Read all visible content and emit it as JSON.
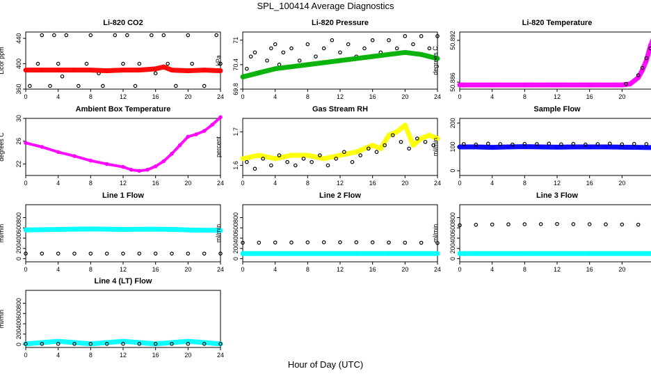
{
  "page": {
    "title": "SPL_100414  Average Diagnostics",
    "xaxis_label": "Hour of Day (UTC)"
  },
  "chart_data": [
    {
      "type": "scatter",
      "title": "Li-820 CO2",
      "ylabel": "Licor ppm",
      "xlim": [
        0,
        24
      ],
      "ylim": [
        360,
        450
      ],
      "xticks": [
        0,
        4,
        8,
        12,
        16,
        20,
        24
      ],
      "yticks": [
        360,
        400,
        440
      ],
      "series": [
        {
          "color": "#000000",
          "x": [
            0.5,
            1.5,
            2.0,
            3.0,
            3.5,
            4.0,
            4.5,
            5.0,
            6.5,
            7.5,
            8.0,
            9.0,
            9.5,
            11.0,
            12.0,
            12.5,
            13.5,
            14.0,
            15.5,
            16.0,
            17.0,
            17.5,
            18.5,
            20.0,
            20.5,
            22.0,
            23.5,
            24.0
          ],
          "y": [
            365,
            400,
            445,
            365,
            445,
            400,
            380,
            445,
            365,
            400,
            445,
            385,
            365,
            445,
            400,
            445,
            365,
            400,
            445,
            385,
            445,
            400,
            365,
            445,
            400,
            365,
            445,
            400
          ]
        },
        {
          "color": "#ff0000",
          "x": [
            0,
            2,
            4,
            6,
            8,
            10,
            12,
            14,
            16,
            17,
            18,
            20,
            22,
            24
          ],
          "y": [
            390,
            390,
            390,
            390,
            390,
            389,
            390,
            390,
            392,
            395,
            390,
            389,
            390,
            389
          ]
        }
      ]
    },
    {
      "type": "scatter",
      "title": "Li-820 Pressure",
      "ylabel": "kPa",
      "xlim": [
        0,
        24
      ],
      "ylim": [
        69.8,
        71.2
      ],
      "xticks": [
        0,
        4,
        8,
        12,
        16,
        20,
        24
      ],
      "yticks": [
        69.8,
        70.4,
        71.0
      ],
      "series": [
        {
          "color": "#000000",
          "x": [
            0.5,
            1.0,
            1.5,
            2.0,
            3.0,
            3.5,
            4.0,
            4.5,
            5.0,
            6.0,
            7.0,
            8.0,
            9.0,
            10.0,
            11.0,
            12.0,
            13.0,
            14.0,
            15.0,
            16.0,
            17.0,
            18.0,
            19.0,
            20.0,
            21.0,
            22.0,
            23.0,
            24.0
          ],
          "y": [
            70.3,
            70.6,
            70.7,
            70.2,
            70.5,
            70.8,
            70.9,
            70.4,
            70.7,
            70.8,
            70.5,
            70.9,
            70.6,
            70.8,
            71.0,
            70.7,
            70.9,
            70.6,
            70.8,
            71.0,
            70.7,
            71.0,
            70.8,
            71.1,
            70.9,
            71.1,
            70.8,
            71.1
          ]
        },
        {
          "color": "#00b000",
          "x": [
            0,
            2,
            4,
            6,
            8,
            10,
            12,
            14,
            16,
            18,
            20,
            22,
            24
          ],
          "y": [
            70.1,
            70.2,
            70.3,
            70.35,
            70.4,
            70.45,
            70.5,
            70.55,
            70.6,
            70.65,
            70.7,
            70.65,
            70.55
          ]
        }
      ]
    },
    {
      "type": "scatter",
      "title": "Li-820 Temperature",
      "ylabel": "degrees C",
      "xlim": [
        0,
        24
      ],
      "ylim": [
        50.884,
        50.096
      ],
      "xticks": [
        0,
        4,
        8,
        12,
        16,
        20,
        24
      ],
      "yticks": [
        "50.886",
        "50.892"
      ],
      "series": [
        {
          "color": "#ff00ff",
          "x": [
            0,
            4,
            8,
            12,
            16,
            20,
            21,
            22,
            22.5,
            23,
            23.5,
            24
          ],
          "y": [
            0.0,
            0.0,
            0.0,
            0.0,
            0.0,
            0.0,
            0.02,
            0.15,
            0.3,
            0.5,
            0.8,
            1.0
          ]
        },
        {
          "color": "#000000",
          "x": [
            20.5,
            22.0,
            22.5,
            23.0,
            23.5,
            24.0
          ],
          "y": [
            0.02,
            0.2,
            0.35,
            0.55,
            0.75,
            0.95
          ]
        }
      ]
    },
    {
      "type": "line",
      "title": "Ambient Box Temperature",
      "ylabel": "degrees C",
      "xlim": [
        0,
        24
      ],
      "ylim": [
        20,
        30
      ],
      "xticks": [
        0,
        4,
        8,
        12,
        16,
        20,
        24
      ],
      "yticks": [
        22,
        26,
        30
      ],
      "series": [
        {
          "color": "#ff00ff",
          "x": [
            0,
            2,
            4,
            6,
            8,
            10,
            12,
            13,
            14,
            15,
            16,
            17,
            18,
            19,
            20,
            21,
            22,
            23,
            24
          ],
          "y": [
            25.7,
            25.0,
            24.1,
            23.4,
            22.6,
            22.0,
            21.5,
            21.0,
            20.8,
            21.0,
            21.6,
            22.5,
            23.8,
            25.3,
            26.8,
            27.2,
            27.8,
            28.9,
            30.2
          ]
        }
      ]
    },
    {
      "type": "scatter",
      "title": "Gas Stream RH",
      "ylabel": "percent",
      "xlim": [
        0,
        24
      ],
      "ylim": [
        1.57,
        1.74
      ],
      "xticks": [
        0,
        4,
        8,
        12,
        16,
        20,
        24
      ],
      "yticks": [
        1.6,
        1.7
      ],
      "series": [
        {
          "color": "#ffff00",
          "x": [
            0,
            2,
            4,
            6,
            8,
            10,
            12,
            14,
            16,
            17,
            18,
            19,
            20,
            21,
            22,
            23,
            24
          ],
          "y": [
            1.62,
            1.63,
            1.62,
            1.63,
            1.63,
            1.62,
            1.63,
            1.64,
            1.66,
            1.65,
            1.69,
            1.7,
            1.72,
            1.66,
            1.68,
            1.69,
            1.68
          ]
        },
        {
          "color": "#000000",
          "x": [
            0.5,
            1.5,
            2.5,
            3.5,
            4.5,
            5.5,
            6.5,
            7.5,
            8.5,
            9.5,
            10.5,
            11.5,
            12.5,
            13.5,
            14.5,
            15.5,
            16.5,
            17.5,
            18.5,
            19.5,
            20.5,
            21.5,
            22.5,
            23.5
          ],
          "y": [
            1.61,
            1.59,
            1.62,
            1.6,
            1.63,
            1.61,
            1.6,
            1.62,
            1.61,
            1.63,
            1.6,
            1.62,
            1.64,
            1.61,
            1.63,
            1.65,
            1.64,
            1.66,
            1.69,
            1.67,
            1.65,
            1.68,
            1.67,
            1.66
          ]
        }
      ]
    },
    {
      "type": "scatter",
      "title": "Sample Flow",
      "ylabel": "ml/min",
      "xlim": [
        0,
        24
      ],
      "ylim": [
        -20,
        220
      ],
      "xticks": [
        0,
        4,
        8,
        12,
        16,
        20,
        24
      ],
      "yticks": [
        0,
        100,
        200
      ],
      "series": [
        {
          "color": "#0000ff",
          "x": [
            0,
            2,
            4,
            6,
            8,
            10,
            12,
            14,
            16,
            18,
            20,
            22,
            24
          ],
          "y": [
            100,
            100,
            98,
            100,
            101,
            100,
            99,
            100,
            100,
            100,
            99,
            98,
            97
          ]
        },
        {
          "color": "#000000",
          "x": [
            0.5,
            2,
            3.5,
            5,
            6.5,
            8,
            9.5,
            11,
            12.5,
            14,
            15.5,
            17,
            18.5,
            20,
            21.5,
            23,
            24
          ],
          "y": [
            112,
            110,
            114,
            112,
            110,
            113,
            112,
            114,
            111,
            113,
            110,
            112,
            114,
            111,
            113,
            112,
            110
          ]
        }
      ]
    },
    {
      "type": "scatter",
      "title": "Line 1 Flow",
      "ylabel": "ml/min",
      "xlim": [
        0,
        24
      ],
      "ylim": [
        -60,
        1050
      ],
      "xticks": [
        0,
        4,
        8,
        12,
        16,
        20,
        24
      ],
      "yticks": [
        0,
        200,
        400,
        600,
        800
      ],
      "series": [
        {
          "color": "#00ffff",
          "x": [
            0,
            2,
            4,
            6,
            8,
            10,
            12,
            14,
            16,
            18,
            20,
            22,
            24
          ],
          "y": [
            560,
            565,
            570,
            575,
            578,
            575,
            570,
            572,
            575,
            570,
            560,
            555,
            550
          ]
        },
        {
          "color": "#000000",
          "x": [
            0,
            2,
            4,
            6,
            8,
            10,
            12,
            14,
            16,
            18,
            20,
            22,
            24
          ],
          "y": [
            100,
            100,
            100,
            100,
            100,
            100,
            100,
            100,
            100,
            100,
            100,
            100,
            100
          ]
        }
      ]
    },
    {
      "type": "scatter",
      "title": "Line 2 Flow",
      "ylabel": "ml/min",
      "xlim": [
        0,
        24
      ],
      "ylim": [
        -60,
        1050
      ],
      "xticks": [
        0,
        4,
        8,
        12,
        16,
        20,
        24
      ],
      "yticks": [
        0,
        200,
        400,
        600,
        800
      ],
      "series": [
        {
          "color": "#00ffff",
          "x": [
            0,
            2,
            4,
            6,
            8,
            10,
            12,
            14,
            16,
            18,
            20,
            22,
            24
          ],
          "y": [
            100,
            100,
            100,
            100,
            100,
            100,
            100,
            100,
            100,
            100,
            100,
            100,
            100
          ]
        },
        {
          "color": "#000000",
          "x": [
            0,
            2,
            4,
            6,
            8,
            10,
            12,
            14,
            16,
            18,
            20,
            22,
            24
          ],
          "y": [
            310,
            312,
            315,
            316,
            318,
            320,
            320,
            320,
            318,
            315,
            312,
            310,
            305
          ]
        }
      ]
    },
    {
      "type": "scatter",
      "title": "Line 3 Flow",
      "ylabel": "ml/min",
      "xlim": [
        0,
        24
      ],
      "ylim": [
        -60,
        1050
      ],
      "xticks": [
        0,
        4,
        8,
        12,
        16,
        20,
        24
      ],
      "yticks": [
        0,
        200,
        400,
        600,
        800
      ],
      "series": [
        {
          "color": "#00ffff",
          "x": [
            0,
            2,
            4,
            6,
            8,
            10,
            12,
            14,
            16,
            18,
            20,
            22,
            24
          ],
          "y": [
            100,
            100,
            100,
            100,
            100,
            100,
            100,
            100,
            100,
            100,
            100,
            100,
            100
          ]
        },
        {
          "color": "#000000",
          "x": [
            0,
            2,
            4,
            6,
            8,
            10,
            12,
            14,
            16,
            18,
            20,
            22,
            24
          ],
          "y": [
            650,
            660,
            665,
            668,
            670,
            672,
            675,
            672,
            670,
            668,
            665,
            662,
            660
          ]
        }
      ]
    },
    {
      "type": "scatter",
      "title": "Line 4 (LT) Flow",
      "ylabel": "ml/min",
      "xlim": [
        0,
        24
      ],
      "ylim": [
        -60,
        1050
      ],
      "xticks": [
        0,
        4,
        8,
        12,
        16,
        20,
        24
      ],
      "yticks": [
        0,
        200,
        400,
        600,
        800
      ],
      "series": [
        {
          "color": "#00ffff",
          "x": [
            0,
            4,
            8,
            12,
            16,
            20,
            24
          ],
          "y": [
            10,
            60,
            10,
            60,
            10,
            60,
            10
          ]
        },
        {
          "color": "#000000",
          "x": [
            0,
            2,
            4,
            6,
            8,
            10,
            12,
            14,
            16,
            18,
            20,
            22,
            24
          ],
          "y": [
            10,
            10,
            10,
            10,
            10,
            10,
            10,
            10,
            10,
            10,
            10,
            10,
            10
          ]
        }
      ]
    }
  ]
}
